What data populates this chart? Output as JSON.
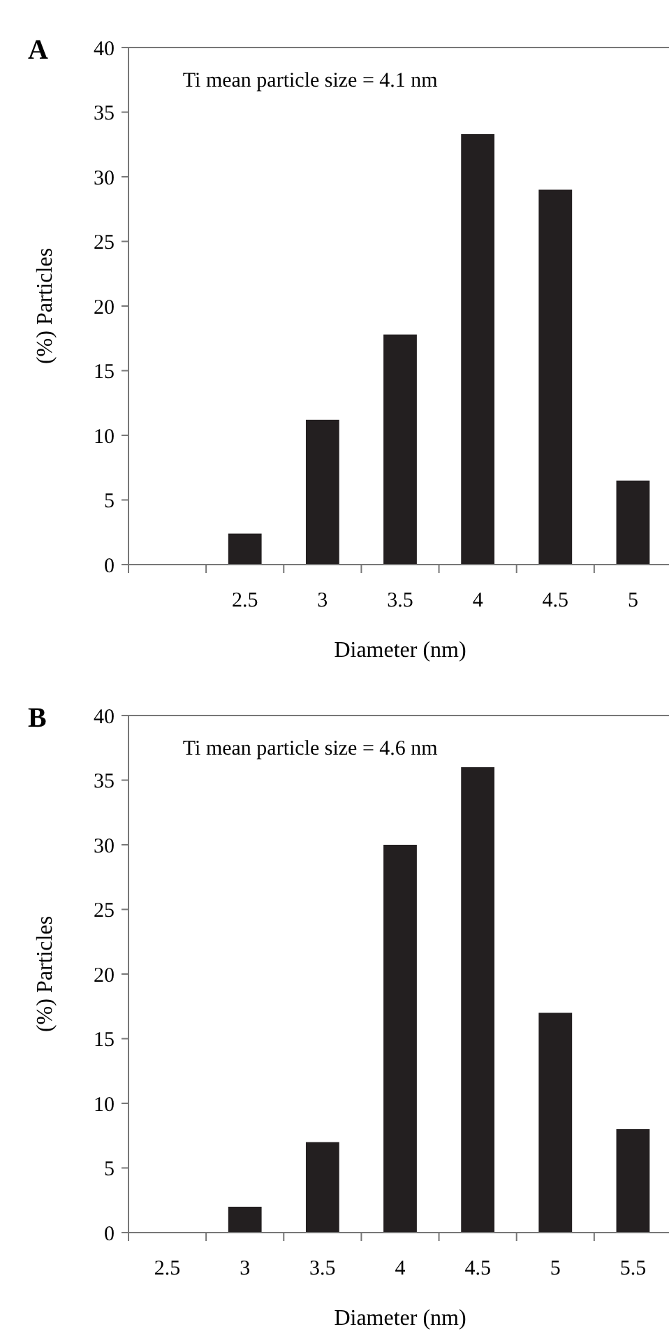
{
  "chart_data": [
    {
      "type": "bar",
      "title": "A",
      "xlabel": "Diameter (nm)",
      "ylabel": "(%) Particles",
      "categories": [
        null,
        "2.5",
        "3",
        "3.5",
        "4",
        "4.5",
        "5"
      ],
      "values": [
        null,
        2.4,
        11.2,
        17.8,
        33.3,
        29,
        6.5
      ],
      "color": "#231f20",
      "ylim": [
        0,
        40
      ],
      "yticks": [
        0,
        5,
        10,
        15,
        20,
        25,
        30,
        35,
        40
      ],
      "annotations": [
        "Ti mean particle size = 4.1 nm"
      ]
    },
    {
      "type": "bar",
      "title": "B",
      "xlabel": "Diameter (nm)",
      "ylabel": "(%) Particles",
      "categories": [
        "2.5",
        "3",
        "3.5",
        "4",
        "4.5",
        "5",
        "5.5"
      ],
      "values": [
        0,
        2,
        7,
        30,
        36,
        17,
        8
      ],
      "color": "#231f20",
      "ylim": [
        0,
        40
      ],
      "yticks": [
        0,
        5,
        10,
        15,
        20,
        25,
        30,
        35,
        40
      ],
      "annotations": [
        "Ti mean particle size = 4.6 nm"
      ]
    }
  ]
}
